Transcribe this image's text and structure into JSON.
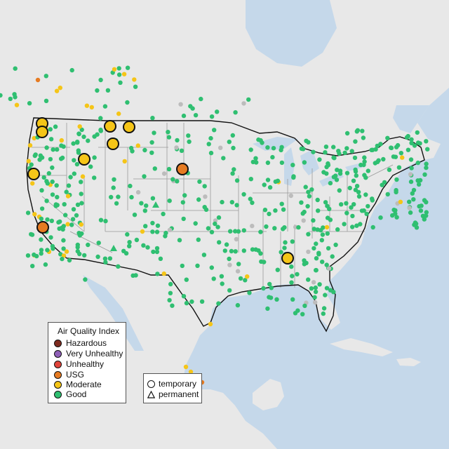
{
  "legend": {
    "title": "Air Quality Index",
    "items": [
      {
        "label": "Hazardous",
        "color": "#7e2b1f"
      },
      {
        "label": "Very Unhealthy",
        "color": "#8f5fb7"
      },
      {
        "label": "Unhealthy",
        "color": "#e0443a"
      },
      {
        "label": "USG",
        "color": "#e67b22"
      },
      {
        "label": "Moderate",
        "color": "#f5c518"
      },
      {
        "label": "Good",
        "color": "#2fbf71"
      }
    ]
  },
  "monitor_types": [
    {
      "label": "temporary",
      "symbol": "circle"
    },
    {
      "label": "permanent",
      "symbol": "triangle"
    }
  ],
  "colors": {
    "water": "#c5d8ea",
    "land": "#e8e8e8",
    "state_border": "#9a9a9a",
    "country_border": "#111111",
    "inactive_sensor": "#bcbcbc"
  }
}
